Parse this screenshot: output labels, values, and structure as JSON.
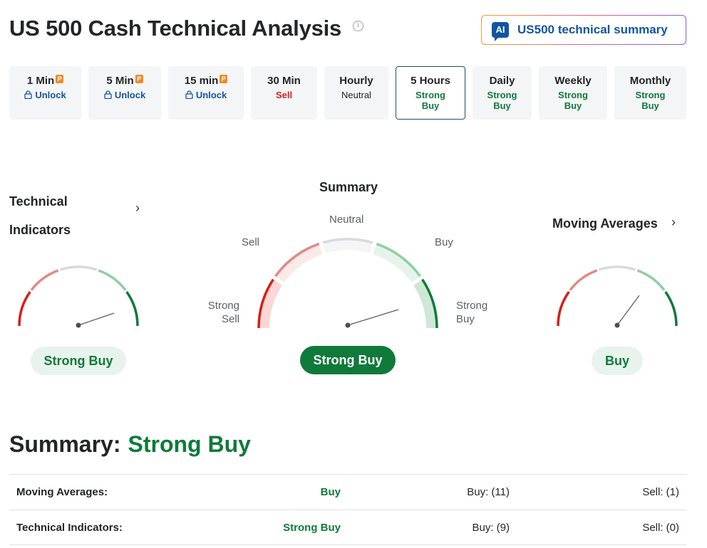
{
  "page": {
    "title": "US 500 Cash Technical Analysis",
    "info_symbol": "i",
    "ai_button": {
      "badge": "AI",
      "label": "US500 technical summary"
    }
  },
  "timeframes": [
    {
      "name": "1 Min",
      "pro": "P",
      "sub": "Unlock",
      "kind": "unlock"
    },
    {
      "name": "5 Min",
      "pro": "P",
      "sub": "Unlock",
      "kind": "unlock"
    },
    {
      "name": "15 min",
      "pro": "P",
      "sub": "Unlock",
      "kind": "unlock"
    },
    {
      "name": "30 Min",
      "sub": "Sell",
      "kind": "sell"
    },
    {
      "name": "Hourly",
      "sub": "Neutral",
      "kind": "neutral"
    },
    {
      "name": "5 Hours",
      "sub": "Strong Buy",
      "kind": "buy",
      "active": true
    },
    {
      "name": "Daily",
      "sub": "Strong Buy",
      "kind": "buy"
    },
    {
      "name": "Weekly",
      "sub": "Strong Buy",
      "kind": "buy"
    },
    {
      "name": "Monthly",
      "sub": "Strong Buy",
      "kind": "buy"
    }
  ],
  "gauges": {
    "technical": {
      "heading": "Technical Indicators",
      "result": "Strong Buy",
      "level": "strong-buy"
    },
    "summary": {
      "heading": "Summary",
      "labels": {
        "strong_sell": "Strong\nSell",
        "sell": "Sell",
        "neutral": "Neutral",
        "buy": "Buy",
        "strong_buy": "Strong\nBuy"
      },
      "result": "Strong Buy",
      "level": "strong-buy"
    },
    "moving": {
      "heading": "Moving Averages",
      "result": "Buy",
      "level": "buy"
    }
  },
  "summary_line": {
    "label": "Summary:",
    "value": "Strong Buy"
  },
  "table": [
    {
      "name": "Moving Averages:",
      "value": "Buy",
      "buy": "Buy: (11)",
      "sell": "Sell: (1)"
    },
    {
      "name": "Technical Indicators:",
      "value": "Strong Buy",
      "buy": "Buy: (9)",
      "sell": "Sell: (0)"
    }
  ],
  "colors": {
    "strong_sell": "#d91e18",
    "sell": "#e08a87",
    "neutral": "#d8dadc",
    "buy": "#8fcfa5",
    "strong_buy": "#0f7a3a",
    "link": "#1256a0"
  }
}
